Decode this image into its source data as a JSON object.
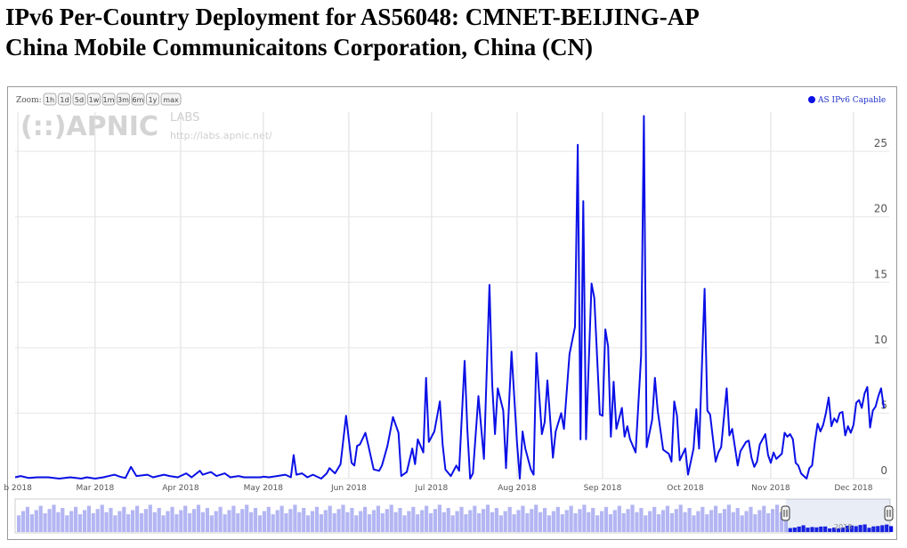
{
  "page": {
    "title_line1": "IPv6 Per-Country Deployment for AS56048: CMNET-BEIJING-AP",
    "title_line2": "China Mobile Communicaitons Corporation, China (CN)"
  },
  "zoom": {
    "label": "Zoom:",
    "buttons": [
      "1h",
      "1d",
      "5d",
      "1w",
      "1m",
      "3m",
      "6m",
      "1y",
      "max"
    ]
  },
  "watermark": {
    "logo_text": "(::)APNIC",
    "labs_text": "LABS",
    "url": "http://labs.apnic.net/"
  },
  "navigator": {
    "year_label": "2018"
  },
  "colors": {
    "series": "#0a10e6",
    "navigator_fill": "#b3b6f2",
    "grid": "#dddddd"
  },
  "chart_data": {
    "type": "line",
    "title": "",
    "xlabel": "",
    "ylabel": "",
    "ylim": [
      0,
      28
    ],
    "yticks": [
      0,
      5,
      10,
      15,
      20,
      25
    ],
    "x_range": [
      "2018-01-31",
      "2018-12-12"
    ],
    "x_ticks": [
      {
        "date": "2018-02-01",
        "label": "b 2018"
      },
      {
        "date": "2018-03-01",
        "label": "Mar 2018"
      },
      {
        "date": "2018-04-01",
        "label": "Apr 2018"
      },
      {
        "date": "2018-05-01",
        "label": "May 2018"
      },
      {
        "date": "2018-06-01",
        "label": "Jun 2018"
      },
      {
        "date": "2018-07-01",
        "label": "Jul 2018"
      },
      {
        "date": "2018-08-01",
        "label": "Aug 2018"
      },
      {
        "date": "2018-09-01",
        "label": "Sep 2018"
      },
      {
        "date": "2018-10-01",
        "label": "Oct 2018"
      },
      {
        "date": "2018-11-01",
        "label": "Nov 2018"
      },
      {
        "date": "2018-12-01",
        "label": "Dec 2018"
      }
    ],
    "legend": {
      "position": "top-right"
    },
    "grid": true,
    "series": [
      {
        "name": "AS IPv6 Capable",
        "points": [
          [
            "2018-01-31",
            0.1
          ],
          [
            "2018-02-02",
            0.2
          ],
          [
            "2018-02-05",
            0.05
          ],
          [
            "2018-02-08",
            0.1
          ],
          [
            "2018-02-12",
            0.1
          ],
          [
            "2018-02-16",
            0.0
          ],
          [
            "2018-02-20",
            0.1
          ],
          [
            "2018-02-24",
            0.0
          ],
          [
            "2018-02-26",
            0.1
          ],
          [
            "2018-03-01",
            0.0
          ],
          [
            "2018-03-04",
            0.1
          ],
          [
            "2018-03-08",
            0.3
          ],
          [
            "2018-03-10",
            0.15
          ],
          [
            "2018-03-12",
            0.05
          ],
          [
            "2018-03-14",
            0.9
          ],
          [
            "2018-03-16",
            0.2
          ],
          [
            "2018-03-20",
            0.3
          ],
          [
            "2018-03-22",
            0.1
          ],
          [
            "2018-03-26",
            0.3
          ],
          [
            "2018-03-28",
            0.2
          ],
          [
            "2018-03-31",
            0.1
          ],
          [
            "2018-04-03",
            0.4
          ],
          [
            "2018-04-05",
            0.1
          ],
          [
            "2018-04-08",
            0.6
          ],
          [
            "2018-04-09",
            0.3
          ],
          [
            "2018-04-12",
            0.5
          ],
          [
            "2018-04-14",
            0.2
          ],
          [
            "2018-04-17",
            0.4
          ],
          [
            "2018-04-19",
            0.1
          ],
          [
            "2018-04-22",
            0.2
          ],
          [
            "2018-04-24",
            0.1
          ],
          [
            "2018-04-27",
            0.1
          ],
          [
            "2018-04-30",
            0.1
          ],
          [
            "2018-05-01",
            0.15
          ],
          [
            "2018-05-03",
            0.1
          ],
          [
            "2018-05-06",
            0.2
          ],
          [
            "2018-05-09",
            0.3
          ],
          [
            "2018-05-11",
            0.1
          ],
          [
            "2018-05-12",
            1.8
          ],
          [
            "2018-05-13",
            0.3
          ],
          [
            "2018-05-15",
            0.4
          ],
          [
            "2018-05-17",
            0.1
          ],
          [
            "2018-05-19",
            0.3
          ],
          [
            "2018-05-22",
            0.0
          ],
          [
            "2018-05-24",
            0.4
          ],
          [
            "2018-05-25",
            0.8
          ],
          [
            "2018-05-27",
            0.4
          ],
          [
            "2018-05-29",
            1.1
          ],
          [
            "2018-05-31",
            4.8
          ],
          [
            "2018-06-02",
            1.2
          ],
          [
            "2018-06-03",
            1.0
          ],
          [
            "2018-06-04",
            2.5
          ],
          [
            "2018-06-05",
            2.6
          ],
          [
            "2018-06-07",
            3.5
          ],
          [
            "2018-06-08",
            2.6
          ],
          [
            "2018-06-10",
            0.7
          ],
          [
            "2018-06-12",
            0.6
          ],
          [
            "2018-06-13",
            1.0
          ],
          [
            "2018-06-15",
            2.5
          ],
          [
            "2018-06-17",
            4.7
          ],
          [
            "2018-06-19",
            3.5
          ],
          [
            "2018-06-20",
            0.2
          ],
          [
            "2018-06-22",
            0.5
          ],
          [
            "2018-06-24",
            2.3
          ],
          [
            "2018-06-25",
            1.1
          ],
          [
            "2018-06-26",
            3.0
          ],
          [
            "2018-06-28",
            2.0
          ],
          [
            "2018-06-29",
            7.7
          ],
          [
            "2018-06-30",
            2.8
          ],
          [
            "2018-07-02",
            3.6
          ],
          [
            "2018-07-04",
            5.9
          ],
          [
            "2018-07-05",
            2.6
          ],
          [
            "2018-07-06",
            0.7
          ],
          [
            "2018-07-08",
            0.2
          ],
          [
            "2018-07-10",
            1.0
          ],
          [
            "2018-07-11",
            0.6
          ],
          [
            "2018-07-13",
            9.0
          ],
          [
            "2018-07-14",
            3.7
          ],
          [
            "2018-07-15",
            0.0
          ],
          [
            "2018-07-16",
            0.4
          ],
          [
            "2018-07-18",
            6.3
          ],
          [
            "2018-07-20",
            1.5
          ],
          [
            "2018-07-22",
            14.8
          ],
          [
            "2018-07-23",
            7.2
          ],
          [
            "2018-07-24",
            3.4
          ],
          [
            "2018-07-25",
            6.9
          ],
          [
            "2018-07-27",
            5.2
          ],
          [
            "2018-07-28",
            0.8
          ],
          [
            "2018-07-30",
            9.7
          ],
          [
            "2018-08-01",
            2.7
          ],
          [
            "2018-08-02",
            0.0
          ],
          [
            "2018-08-03",
            3.6
          ],
          [
            "2018-08-04",
            2.3
          ],
          [
            "2018-08-06",
            0.7
          ],
          [
            "2018-08-07",
            0.3
          ],
          [
            "2018-08-08",
            9.6
          ],
          [
            "2018-08-10",
            3.4
          ],
          [
            "2018-08-11",
            4.3
          ],
          [
            "2018-08-12",
            7.5
          ],
          [
            "2018-08-14",
            1.6
          ],
          [
            "2018-08-15",
            3.6
          ],
          [
            "2018-08-17",
            5.0
          ],
          [
            "2018-08-18",
            3.8
          ],
          [
            "2018-08-20",
            9.5
          ],
          [
            "2018-08-22",
            11.6
          ],
          [
            "2018-08-23",
            25.5
          ],
          [
            "2018-08-24",
            3.0
          ],
          [
            "2018-08-25",
            21.2
          ],
          [
            "2018-08-26",
            3.0
          ],
          [
            "2018-08-28",
            14.9
          ],
          [
            "2018-08-29",
            13.8
          ],
          [
            "2018-08-31",
            4.9
          ],
          [
            "2018-09-01",
            4.8
          ],
          [
            "2018-09-02",
            11.4
          ],
          [
            "2018-09-03",
            10.1
          ],
          [
            "2018-09-04",
            3.2
          ],
          [
            "2018-09-05",
            7.4
          ],
          [
            "2018-09-06",
            3.8
          ],
          [
            "2018-09-08",
            5.4
          ],
          [
            "2018-09-09",
            3.2
          ],
          [
            "2018-09-10",
            4.0
          ],
          [
            "2018-09-11",
            3.0
          ],
          [
            "2018-09-13",
            2.0
          ],
          [
            "2018-09-15",
            9.4
          ],
          [
            "2018-09-16",
            27.7
          ],
          [
            "2018-09-17",
            2.4
          ],
          [
            "2018-09-19",
            4.5
          ],
          [
            "2018-09-20",
            7.7
          ],
          [
            "2018-09-21",
            5.2
          ],
          [
            "2018-09-23",
            2.2
          ],
          [
            "2018-09-25",
            1.9
          ],
          [
            "2018-09-26",
            1.3
          ],
          [
            "2018-09-27",
            5.9
          ],
          [
            "2018-09-28",
            4.8
          ],
          [
            "2018-09-29",
            1.4
          ],
          [
            "2018-10-01",
            2.3
          ],
          [
            "2018-10-02",
            0.3
          ],
          [
            "2018-10-04",
            2.3
          ],
          [
            "2018-10-05",
            5.3
          ],
          [
            "2018-10-06",
            2.3
          ],
          [
            "2018-10-08",
            14.5
          ],
          [
            "2018-10-09",
            5.2
          ],
          [
            "2018-10-10",
            4.9
          ],
          [
            "2018-10-12",
            1.3
          ],
          [
            "2018-10-13",
            2.0
          ],
          [
            "2018-10-14",
            2.4
          ],
          [
            "2018-10-16",
            6.9
          ],
          [
            "2018-10-17",
            3.3
          ],
          [
            "2018-10-18",
            3.8
          ],
          [
            "2018-10-20",
            1.0
          ],
          [
            "2018-10-21",
            2.1
          ],
          [
            "2018-10-23",
            2.8
          ],
          [
            "2018-10-24",
            2.9
          ],
          [
            "2018-10-25",
            1.6
          ],
          [
            "2018-10-26",
            0.9
          ],
          [
            "2018-10-27",
            1.3
          ],
          [
            "2018-10-28",
            2.6
          ],
          [
            "2018-10-30",
            3.4
          ],
          [
            "2018-10-31",
            1.8
          ],
          [
            "2018-11-01",
            1.2
          ],
          [
            "2018-11-02",
            2.0
          ],
          [
            "2018-11-03",
            1.5
          ],
          [
            "2018-11-05",
            1.9
          ],
          [
            "2018-11-06",
            3.5
          ],
          [
            "2018-11-07",
            3.2
          ],
          [
            "2018-11-08",
            3.4
          ],
          [
            "2018-11-09",
            3.0
          ],
          [
            "2018-11-10",
            1.2
          ],
          [
            "2018-11-11",
            1.0
          ],
          [
            "2018-11-12",
            0.4
          ],
          [
            "2018-11-13",
            0.2
          ],
          [
            "2018-11-14",
            0.0
          ],
          [
            "2018-11-15",
            0.8
          ],
          [
            "2018-11-16",
            1.0
          ],
          [
            "2018-11-17",
            2.8
          ],
          [
            "2018-11-18",
            4.2
          ],
          [
            "2018-11-19",
            3.6
          ],
          [
            "2018-11-20",
            4.1
          ],
          [
            "2018-11-21",
            5.0
          ],
          [
            "2018-11-22",
            6.2
          ],
          [
            "2018-11-23",
            4.0
          ],
          [
            "2018-11-24",
            4.6
          ],
          [
            "2018-11-25",
            4.3
          ],
          [
            "2018-11-26",
            5.0
          ],
          [
            "2018-11-27",
            5.1
          ],
          [
            "2018-11-28",
            3.3
          ],
          [
            "2018-11-29",
            4.0
          ],
          [
            "2018-11-30",
            3.5
          ],
          [
            "2018-12-01",
            4.1
          ],
          [
            "2018-12-02",
            5.8
          ],
          [
            "2018-12-03",
            6.0
          ],
          [
            "2018-12-04",
            5.4
          ],
          [
            "2018-12-05",
            6.5
          ],
          [
            "2018-12-06",
            7.0
          ],
          [
            "2018-12-07",
            3.9
          ],
          [
            "2018-12-08",
            5.2
          ],
          [
            "2018-12-09",
            5.5
          ],
          [
            "2018-12-10",
            6.3
          ],
          [
            "2018-12-11",
            6.9
          ],
          [
            "2018-12-12",
            5.4
          ]
        ]
      }
    ]
  }
}
